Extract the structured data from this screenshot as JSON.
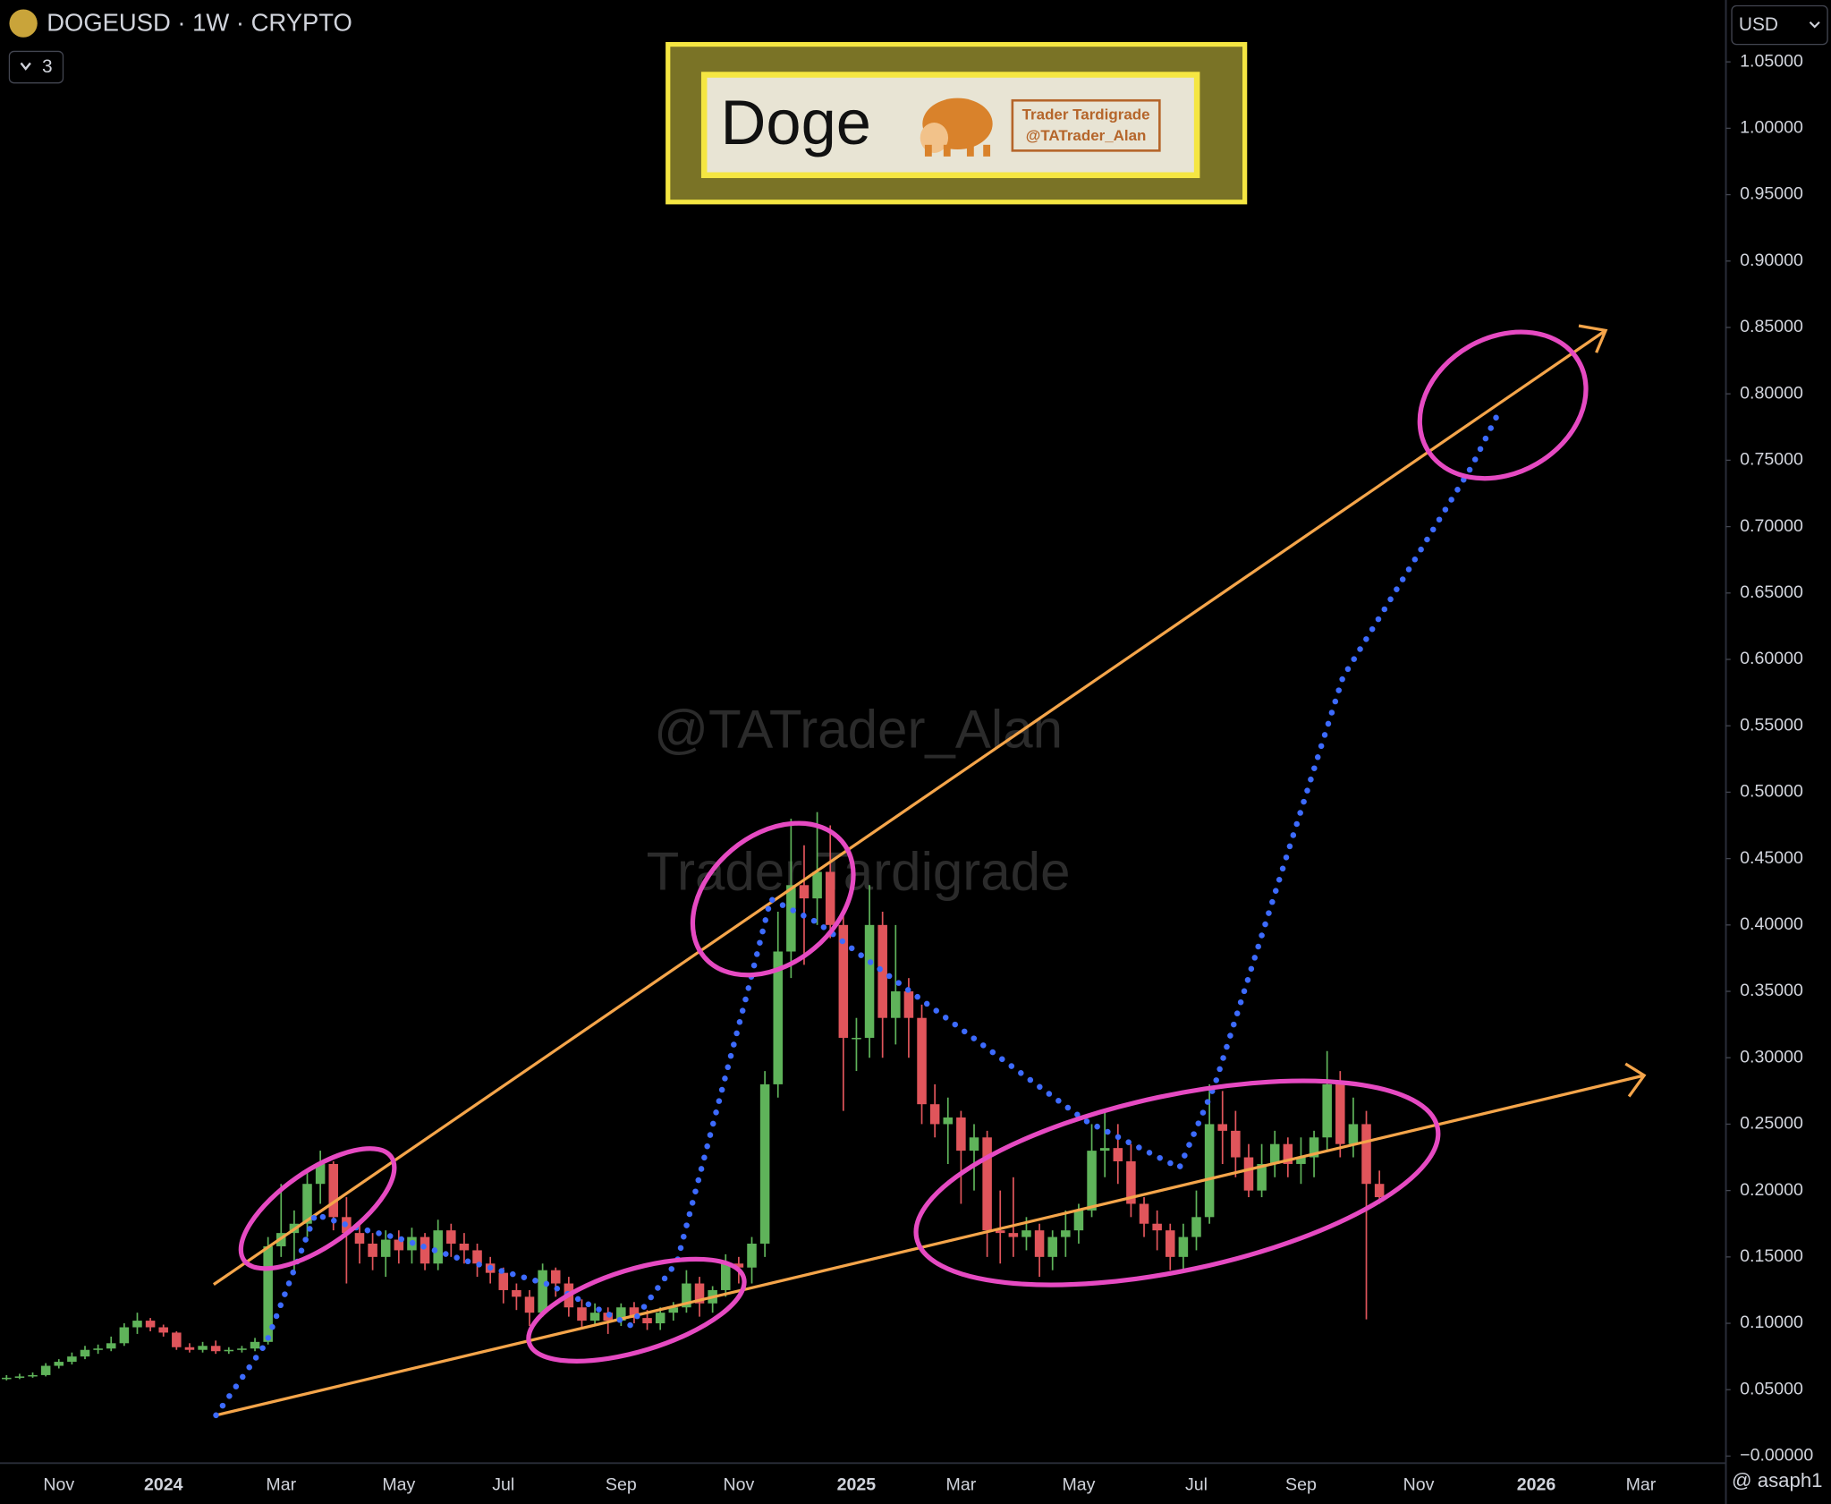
{
  "ui": {
    "symbol": "DOGEUSD · 1W · CRYPTO",
    "indicators": "3",
    "currency": "USD",
    "banner_title": "Doge",
    "banner_line1": "Trader Tardigrade",
    "banner_line2": "@TATrader_Alan",
    "watermark1": "@TATrader_Alan",
    "watermark2": "Trader Tardigrade",
    "footer": "@ asaph1"
  },
  "chart_data": {
    "type": "candlestick",
    "categories": [
      null,
      null,
      null,
      null,
      "Nov",
      null,
      null,
      null,
      null,
      null,
      null,
      null,
      "2024",
      null,
      null,
      null,
      null,
      null,
      null,
      null,
      null,
      "Mar",
      null,
      null,
      null,
      null,
      null,
      null,
      null,
      null,
      "May",
      null,
      null,
      null,
      null,
      null,
      null,
      null,
      "Jul",
      null,
      null,
      null,
      null,
      null,
      null,
      null,
      null,
      "Sep",
      null,
      null,
      null,
      null,
      null,
      null,
      null,
      null,
      "Nov",
      null,
      null,
      null,
      null,
      null,
      null,
      null,
      null,
      "2025",
      null,
      null,
      null,
      null,
      null,
      null,
      null,
      "Mar",
      null,
      null,
      null,
      null,
      null,
      null,
      null,
      null,
      "May",
      null,
      null,
      null,
      null,
      null,
      null,
      null,
      null,
      "Jul",
      null,
      null,
      null,
      null,
      null,
      null,
      null,
      "Sep",
      null,
      null,
      null,
      null,
      null,
      null,
      null,
      null,
      "Nov",
      null,
      null,
      null,
      null,
      null,
      null,
      null,
      null,
      "2026",
      null,
      null,
      null,
      null,
      null,
      null,
      null,
      "Mar",
      null,
      null,
      null,
      null,
      null,
      null
    ],
    "series": [
      {
        "name": "DOGEUSD",
        "up_color": "#5fb35a",
        "down_color": "#e0555b",
        "open": [
          0.058,
          0.059,
          0.06,
          0.061,
          0.068,
          0.071,
          0.075,
          0.08,
          0.081,
          0.085,
          0.097,
          0.102,
          0.097,
          0.093,
          0.082,
          0.08,
          0.083,
          0.079,
          0.08,
          0.081,
          0.086,
          0.158,
          0.168,
          0.175,
          0.205,
          0.22,
          0.18,
          0.168,
          0.16,
          0.15,
          0.163,
          0.155,
          0.165,
          0.145,
          0.17,
          0.16,
          0.155,
          0.145,
          0.138,
          0.125,
          0.12,
          0.108,
          0.14,
          0.13,
          0.112,
          0.102,
          0.108,
          0.102,
          0.112,
          0.104,
          0.1,
          0.108,
          0.112,
          0.13,
          0.115,
          0.125,
          0.145,
          0.142,
          0.16,
          0.28,
          0.38,
          0.43,
          0.42,
          0.44,
          0.4,
          0.315,
          0.315,
          0.4,
          0.33,
          0.35,
          0.33,
          0.265,
          0.25,
          0.255,
          0.23,
          0.24,
          0.17,
          0.168,
          0.165,
          0.17,
          0.15,
          0.165,
          0.17,
          0.185,
          0.23,
          0.232,
          0.222,
          0.19,
          0.175,
          0.17,
          0.15,
          0.165,
          0.18,
          0.25,
          0.245,
          0.225,
          0.2,
          0.22,
          0.235,
          0.22,
          0.225,
          0.24,
          0.28,
          0.235,
          0.25,
          0.205,
          null,
          null,
          null,
          null,
          null,
          null,
          null,
          null,
          null,
          null,
          null,
          null,
          null,
          null,
          null,
          null,
          null,
          null,
          null,
          null,
          null,
          null,
          null,
          null,
          null,
          null
        ],
        "high": [
          0.061,
          0.062,
          0.063,
          0.07,
          0.073,
          0.078,
          0.083,
          0.084,
          0.09,
          0.1,
          0.108,
          0.104,
          0.099,
          0.094,
          0.085,
          0.086,
          0.087,
          0.082,
          0.083,
          0.089,
          0.165,
          0.205,
          0.185,
          0.215,
          0.23,
          0.222,
          0.195,
          0.175,
          0.168,
          0.17,
          0.17,
          0.172,
          0.168,
          0.178,
          0.175,
          0.168,
          0.16,
          0.15,
          0.142,
          0.13,
          0.125,
          0.145,
          0.142,
          0.135,
          0.118,
          0.115,
          0.112,
          0.115,
          0.116,
          0.11,
          0.112,
          0.116,
          0.14,
          0.135,
          0.128,
          0.152,
          0.15,
          0.165,
          0.29,
          0.41,
          0.48,
          0.46,
          0.485,
          0.475,
          0.41,
          0.33,
          0.43,
          0.41,
          0.4,
          0.36,
          0.34,
          0.28,
          0.27,
          0.26,
          0.25,
          0.245,
          0.2,
          0.21,
          0.18,
          0.175,
          0.17,
          0.185,
          0.19,
          0.25,
          0.26,
          0.25,
          0.235,
          0.195,
          0.185,
          0.175,
          0.175,
          0.2,
          0.28,
          0.275,
          0.26,
          0.235,
          0.235,
          0.245,
          0.24,
          0.24,
          0.245,
          0.305,
          0.29,
          0.27,
          0.26,
          0.215,
          null,
          null,
          null,
          null,
          null,
          null,
          null,
          null,
          null,
          null,
          null,
          null,
          null,
          null,
          null,
          null,
          null,
          null,
          null,
          null,
          null,
          null,
          null,
          null,
          null,
          null
        ],
        "low": [
          0.057,
          0.058,
          0.059,
          0.06,
          0.066,
          0.069,
          0.073,
          0.077,
          0.079,
          0.083,
          0.092,
          0.094,
          0.09,
          0.08,
          0.078,
          0.078,
          0.077,
          0.077,
          0.078,
          0.079,
          0.084,
          0.15,
          0.14,
          0.165,
          0.19,
          0.17,
          0.13,
          0.145,
          0.14,
          0.135,
          0.145,
          0.145,
          0.14,
          0.14,
          0.15,
          0.145,
          0.135,
          0.13,
          0.115,
          0.11,
          0.098,
          0.105,
          0.12,
          0.105,
          0.096,
          0.098,
          0.092,
          0.098,
          0.1,
          0.095,
          0.095,
          0.102,
          0.108,
          0.105,
          0.108,
          0.12,
          0.13,
          0.13,
          0.15,
          0.27,
          0.36,
          0.37,
          0.4,
          0.39,
          0.26,
          0.29,
          0.3,
          0.3,
          0.31,
          0.3,
          0.25,
          0.24,
          0.22,
          0.19,
          0.2,
          0.15,
          0.145,
          0.15,
          0.155,
          0.135,
          0.14,
          0.15,
          0.16,
          0.18,
          0.21,
          0.205,
          0.18,
          0.165,
          0.155,
          0.14,
          0.14,
          0.155,
          0.175,
          0.22,
          0.21,
          0.195,
          0.195,
          0.21,
          0.21,
          0.205,
          0.21,
          0.23,
          0.225,
          0.225,
          0.103,
          0.19,
          null,
          null,
          null,
          null,
          null,
          null,
          null,
          null,
          null,
          null,
          null,
          null,
          null,
          null,
          null,
          null,
          null,
          null,
          null,
          null,
          null,
          null,
          null,
          null,
          null,
          null
        ],
        "close": [
          0.059,
          0.06,
          0.061,
          0.068,
          0.071,
          0.075,
          0.08,
          0.081,
          0.085,
          0.097,
          0.102,
          0.097,
          0.093,
          0.082,
          0.08,
          0.083,
          0.079,
          0.08,
          0.081,
          0.086,
          0.158,
          0.168,
          0.175,
          0.205,
          0.22,
          0.18,
          0.168,
          0.16,
          0.15,
          0.163,
          0.155,
          0.165,
          0.145,
          0.17,
          0.16,
          0.155,
          0.145,
          0.138,
          0.125,
          0.12,
          0.108,
          0.14,
          0.13,
          0.112,
          0.102,
          0.108,
          0.102,
          0.112,
          0.104,
          0.1,
          0.108,
          0.112,
          0.13,
          0.115,
          0.125,
          0.145,
          0.142,
          0.16,
          0.28,
          0.38,
          0.43,
          0.42,
          0.44,
          0.4,
          0.315,
          0.315,
          0.4,
          0.33,
          0.35,
          0.33,
          0.265,
          0.25,
          0.255,
          0.23,
          0.24,
          0.17,
          0.168,
          0.165,
          0.17,
          0.15,
          0.165,
          0.17,
          0.185,
          0.23,
          0.232,
          0.222,
          0.19,
          0.175,
          0.17,
          0.15,
          0.165,
          0.18,
          0.25,
          0.245,
          0.225,
          0.2,
          0.22,
          0.235,
          0.22,
          0.225,
          0.24,
          0.28,
          0.235,
          0.25,
          0.205,
          0.195,
          null,
          null,
          null,
          null,
          null,
          null,
          null,
          null,
          null,
          null,
          null,
          null,
          null,
          null,
          null,
          null,
          null,
          null,
          null,
          null,
          null,
          null,
          null,
          null,
          null,
          null
        ]
      }
    ],
    "ylim": [
      -0.0053,
      1.0966
    ],
    "yticks": [
      {
        "value": 1.05,
        "label": "1.05000"
      },
      {
        "value": 1.0,
        "label": "1.00000"
      },
      {
        "value": 0.95,
        "label": "0.95000"
      },
      {
        "value": 0.9,
        "label": "0.90000"
      },
      {
        "value": 0.85,
        "label": "0.85000"
      },
      {
        "value": 0.8,
        "label": "0.80000"
      },
      {
        "value": 0.75,
        "label": "0.75000"
      },
      {
        "value": 0.7,
        "label": "0.70000"
      },
      {
        "value": 0.65,
        "label": "0.65000"
      },
      {
        "value": 0.6,
        "label": "0.60000"
      },
      {
        "value": 0.55,
        "label": "0.55000"
      },
      {
        "value": 0.5,
        "label": "0.50000"
      },
      {
        "value": 0.45,
        "label": "0.45000"
      },
      {
        "value": 0.4,
        "label": "0.40000"
      },
      {
        "value": 0.35,
        "label": "0.35000"
      },
      {
        "value": 0.3,
        "label": "0.30000"
      },
      {
        "value": 0.25,
        "label": "0.25000"
      },
      {
        "value": 0.2,
        "label": "0.20000"
      },
      {
        "value": 0.15,
        "label": "0.15000"
      },
      {
        "value": 0.1,
        "label": "0.10000"
      },
      {
        "value": 0.05,
        "label": "0.05000"
      },
      {
        "value": 0,
        "label": "−0.00000"
      }
    ],
    "grid": false
  }
}
